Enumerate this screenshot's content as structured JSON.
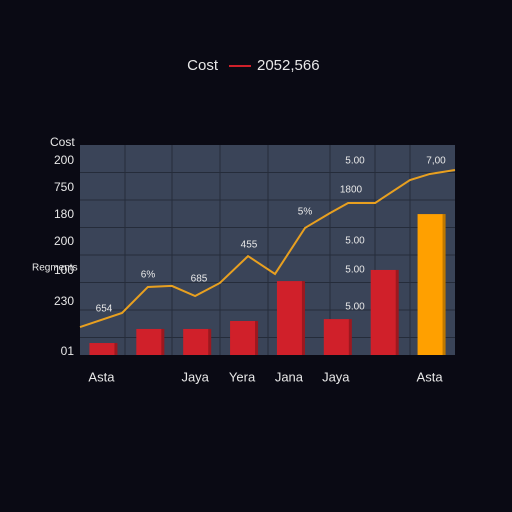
{
  "chart_data": {
    "type": "bar",
    "legend": {
      "label": "Cost",
      "color": "#d0202a",
      "note": "2052,566"
    },
    "axis_title": "Cost",
    "ylabel": "Regments",
    "ylabels": [
      "200",
      "750",
      "180",
      "200",
      "100",
      "230",
      "01"
    ],
    "categories": [
      "Asta",
      null,
      "Jaya",
      "Yera",
      "Jana",
      "Jaya",
      null,
      "Asta"
    ],
    "series": [
      {
        "name": "Cost",
        "colors": [
          "#d0202a",
          "#d0202a",
          "#d0202a",
          "#d0202a",
          "#d0202a",
          "#d0202a",
          "#d0202a",
          "#ffa000"
        ],
        "values": [
          5.7,
          12.4,
          12.4,
          16.2,
          35.2,
          17.1,
          40.5,
          67.1
        ]
      }
    ],
    "line": {
      "color": "#e8a020",
      "x": [
        0,
        11.2,
        18.1,
        24.5,
        30.7,
        37.3,
        44.8,
        52,
        60,
        66.7,
        71.5,
        78.7,
        88,
        93.3,
        100
      ],
      "values": [
        13.3,
        20.0,
        32.4,
        32.9,
        28.1,
        34.3,
        47.1,
        38.6,
        60.5,
        67.6,
        72.4,
        72.4,
        83.3,
        86.2,
        88.1
      ]
    },
    "xlim": [
      0,
      100
    ],
    "ylim": [
      0,
      100
    ],
    "annotations": [
      "654",
      "6%",
      "685",
      "455",
      "5%",
      "1800",
      "5.00",
      "5.00",
      "5.00",
      "5.00",
      "7,00"
    ]
  }
}
